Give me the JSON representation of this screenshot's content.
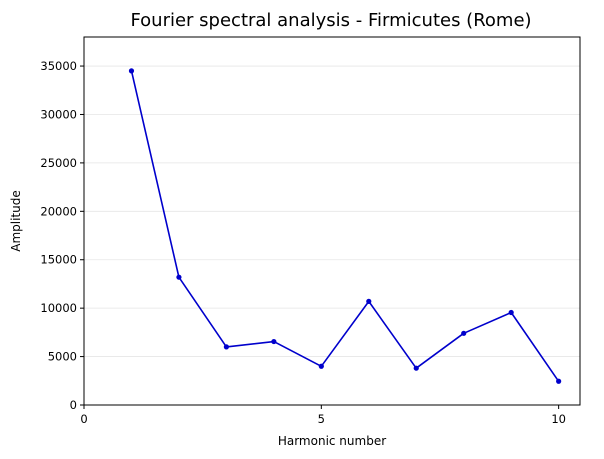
{
  "chart_data": {
    "type": "line",
    "title": "Fourier spectral analysis - Firmicutes (Rome)",
    "xlabel": "Harmonic number",
    "ylabel": "Amplitude",
    "xlim": [
      0,
      10.45
    ],
    "ylim": [
      0,
      38000
    ],
    "xticks": [
      0,
      5,
      10
    ],
    "yticks": [
      0,
      5000,
      10000,
      15000,
      20000,
      25000,
      30000,
      35000
    ],
    "grid": "horizontal",
    "legend": "none",
    "series": [
      {
        "color": "#0000cc",
        "x": [
          1,
          2,
          3,
          4,
          5,
          6,
          7,
          8,
          9,
          10
        ],
        "y": [
          34500,
          13200,
          6000,
          6550,
          4000,
          10700,
          3800,
          7400,
          9550,
          2450
        ]
      }
    ]
  }
}
